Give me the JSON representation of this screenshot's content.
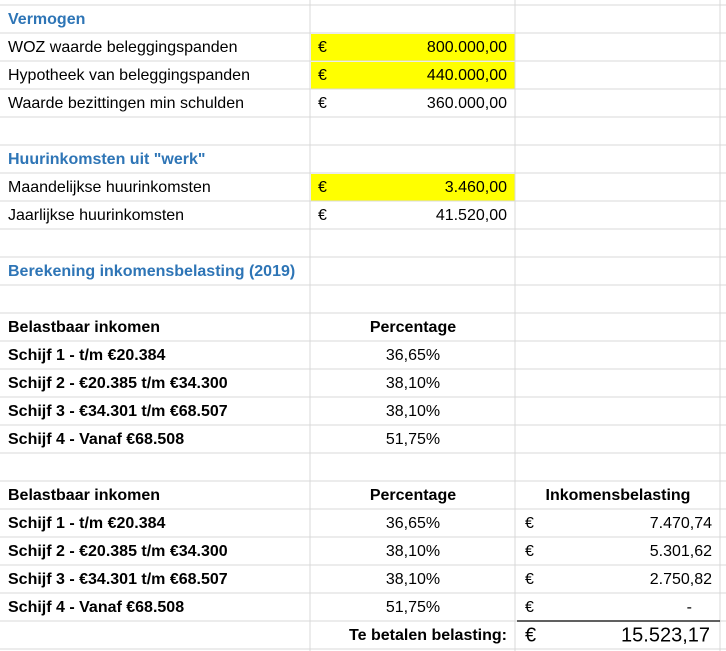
{
  "vermogen": {
    "title": "Vermogen",
    "rows": [
      {
        "label": "WOZ waarde beleggingspanden",
        "currency": "€",
        "value": "800.000,00"
      },
      {
        "label": "Hypotheek van beleggingspanden",
        "currency": "€",
        "value": "440.000,00"
      },
      {
        "label": "Waarde bezittingen min schulden",
        "currency": "€",
        "value": "360.000,00"
      }
    ]
  },
  "huur": {
    "title": "Huurinkomsten uit \"werk\"",
    "rows": [
      {
        "label": "Maandelijkse huurinkomsten",
        "currency": "€",
        "value": "3.460,00"
      },
      {
        "label": "Jaarlijkse huurinkomsten",
        "currency": "€",
        "value": "41.520,00"
      }
    ]
  },
  "berekening": {
    "title": "Berekening inkomensbelasting (2019)",
    "table1": {
      "headers": [
        "Belastbaar inkomen",
        "Percentage"
      ],
      "rows": [
        [
          "Schijf 1 - t/m €20.384",
          "36,65%"
        ],
        [
          "Schijf 2 - €20.385 t/m €34.300",
          "38,10%"
        ],
        [
          "Schijf 3 - €34.301 t/m €68.507",
          "38,10%"
        ],
        [
          "Schijf 4 - Vanaf €68.508",
          "51,75%"
        ]
      ]
    },
    "table2": {
      "headers": [
        "Belastbaar inkomen",
        "Percentage",
        "Inkomensbelasting"
      ],
      "rows": [
        [
          "Schijf 1 - t/m €20.384",
          "36,65%",
          "€",
          "7.470,74"
        ],
        [
          "Schijf 2 - €20.385 t/m €34.300",
          "38,10%",
          "€",
          "5.301,62"
        ],
        [
          "Schijf 3 - €34.301 t/m €68.507",
          "38,10%",
          "€",
          "2.750,82"
        ],
        [
          "Schijf 4 - Vanaf €68.508",
          "51,75%",
          "€",
          "-"
        ]
      ]
    },
    "total": {
      "label": "Te betalen belasting:",
      "currency": "€",
      "value": "15.523,17"
    }
  }
}
